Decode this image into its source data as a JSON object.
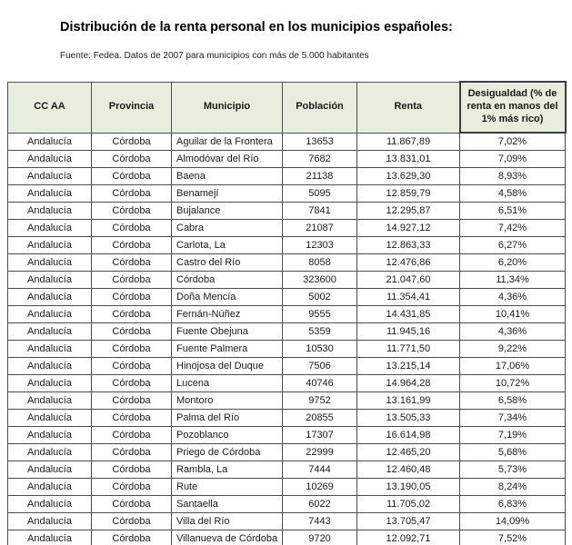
{
  "page": {
    "title": "Distribución de la renta personal en los municipios españoles:",
    "source": "Fuente: Fedea. Datos de 2007 para municipios con más de 5.000 habitantes"
  },
  "colors": {
    "header_bg": "#e8eedd",
    "border": "#4d4d4d",
    "text": "#1a1a1a"
  },
  "table": {
    "headers": [
      "CC AA",
      "Provincia",
      "Municipio",
      "Población",
      "Renta",
      "Desigualdad (% de renta en manos del 1% más rico)"
    ],
    "rows": [
      [
        "Andalucía",
        "Córdoba",
        "Aguilar de la Frontera",
        "13653",
        "11.867,89",
        "7,02%"
      ],
      [
        "Andalucía",
        "Córdoba",
        "Almodóvar del Río",
        "7682",
        "13.831,01",
        "7,09%"
      ],
      [
        "Andalucía",
        "Córdoba",
        "Baena",
        "21138",
        "13.629,30",
        "8,93%"
      ],
      [
        "Andalucía",
        "Córdoba",
        "Benamejí",
        "5095",
        "12.859,79",
        "4,58%"
      ],
      [
        "Andalucía",
        "Córdoba",
        "Bujalance",
        "7841",
        "12.295,87",
        "6,51%"
      ],
      [
        "Andalucía",
        "Córdoba",
        "Cabra",
        "21087",
        "14.927,12",
        "7,42%"
      ],
      [
        "Andalucía",
        "Córdoba",
        "Carlota, La",
        "12303",
        "12.863,33",
        "6,27%"
      ],
      [
        "Andalucía",
        "Córdoba",
        "Castro del Río",
        "8058",
        "12.476,86",
        "6,20%"
      ],
      [
        "Andalucía",
        "Córdoba",
        "Córdoba",
        "323600",
        "21.047,60",
        "11,34%"
      ],
      [
        "Andalucía",
        "Córdoba",
        "Doña Mencía",
        "5002",
        "11.354,41",
        "4,36%"
      ],
      [
        "Andalucía",
        "Córdoba",
        "Fernán-Núñez",
        "9555",
        "14.431,85",
        "10,41%"
      ],
      [
        "Andalucía",
        "Córdoba",
        "Fuente Obejuna",
        "5359",
        "11.945,16",
        "4,36%"
      ],
      [
        "Andalucía",
        "Córdoba",
        "Fuente Palmera",
        "10530",
        "11.771,50",
        "9,22%"
      ],
      [
        "Andalucía",
        "Córdoba",
        "Hinojosa del Duque",
        "7506",
        "13.215,14",
        "17,06%"
      ],
      [
        "Andalucía",
        "Córdoba",
        "Lucena",
        "40746",
        "14.964,28",
        "10,72%"
      ],
      [
        "Andalucía",
        "Córdoba",
        "Montoro",
        "9752",
        "13.161,99",
        "6,58%"
      ],
      [
        "Andalucía",
        "Córdoba",
        "Palma del Río",
        "20855",
        "13.505,33",
        "7,34%"
      ],
      [
        "Andalucía",
        "Córdoba",
        "Pozoblanco",
        "17307",
        "16.614,98",
        "7,19%"
      ],
      [
        "Andalucía",
        "Córdoba",
        "Priego de Córdoba",
        "22999",
        "12.465,20",
        "5,68%"
      ],
      [
        "Andalucía",
        "Córdoba",
        "Rambla, La",
        "7444",
        "12.460,48",
        "5,73%"
      ],
      [
        "Andalucía",
        "Córdoba",
        "Rute",
        "10269",
        "13.190,05",
        "8,24%"
      ],
      [
        "Andalucía",
        "Córdoba",
        "Santaella",
        "6022",
        "11.705,02",
        "6,83%"
      ],
      [
        "Andalucía",
        "Córdoba",
        "Villa del Río",
        "7443",
        "13.705,47",
        "14,09%"
      ],
      [
        "Andalucía",
        "Córdoba",
        "Villanueva de Córdoba",
        "9720",
        "12.092,71",
        "7,52%"
      ]
    ]
  }
}
